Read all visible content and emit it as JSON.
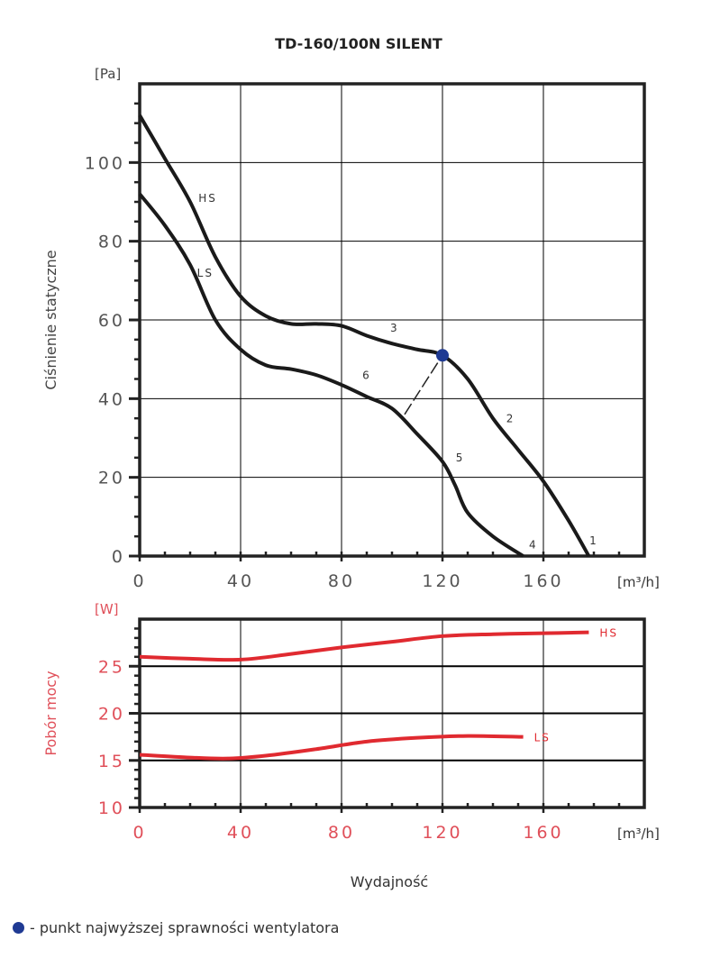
{
  "chart_data": [
    {
      "type": "line",
      "title": "TD-160/100N SILENT",
      "xlabel": "",
      "ylabel": "Ciśnienie statyczne",
      "y_unit": "[Pa]",
      "x_unit": "[m³/h]",
      "xlim": [
        0,
        200
      ],
      "ylim": [
        0,
        120
      ],
      "xticks": [
        "0",
        "40",
        "80",
        "120",
        "160"
      ],
      "yticks": [
        "0",
        "20",
        "40",
        "60",
        "80",
        "100"
      ],
      "grid": true,
      "series": [
        {
          "name": "HS",
          "x": [
            0,
            10,
            20,
            30,
            40,
            50,
            60,
            70,
            80,
            90,
            100,
            110,
            120,
            130,
            140,
            150,
            160,
            170,
            178
          ],
          "y": [
            112,
            101,
            90,
            76,
            66,
            61,
            59,
            59,
            58.5,
            56,
            54,
            52.5,
            51,
            45,
            35,
            27,
            19,
            9,
            0
          ]
        },
        {
          "name": "LS",
          "x": [
            0,
            10,
            20,
            30,
            40,
            50,
            60,
            70,
            80,
            90,
            100,
            110,
            120,
            125,
            130,
            140,
            152
          ],
          "y": [
            92,
            84,
            74,
            60,
            52.5,
            48.5,
            47.5,
            46,
            43.5,
            40.5,
            37.5,
            31,
            24,
            18,
            11,
            5,
            0
          ]
        }
      ],
      "dashed_line": {
        "x": [
          105,
          120
        ],
        "y": [
          36,
          51
        ]
      },
      "max_efficiency_point": {
        "x": 120,
        "y": 51,
        "color": "#1f3a93"
      },
      "annotations": [
        {
          "text": "HS",
          "x": 27,
          "y": 90
        },
        {
          "text": "LS",
          "x": 26,
          "y": 71
        },
        {
          "text": "3",
          "x": 101,
          "y": 57
        },
        {
          "text": "6",
          "x": 90,
          "y": 45
        },
        {
          "text": "2",
          "x": 147,
          "y": 34
        },
        {
          "text": "5",
          "x": 127,
          "y": 24
        },
        {
          "text": "4",
          "x": 156,
          "y": 2
        },
        {
          "text": "1",
          "x": 180,
          "y": 3
        }
      ]
    },
    {
      "type": "line",
      "ylabel": "Pobór mocy",
      "y_unit": "[W]",
      "x_unit": "[m³/h]",
      "xlabel": "Wydajność",
      "xlim": [
        0,
        200
      ],
      "ylim": [
        10,
        30
      ],
      "xticks": [
        "0",
        "40",
        "80",
        "120",
        "160"
      ],
      "yticks": [
        "10",
        "15",
        "20",
        "25"
      ],
      "grid": true,
      "color": "#e02a30",
      "series": [
        {
          "name": "HS",
          "x": [
            0,
            20,
            40,
            60,
            80,
            100,
            120,
            140,
            160,
            178
          ],
          "y": [
            26,
            25.8,
            25.7,
            26.3,
            27,
            27.6,
            28.2,
            28.4,
            28.5,
            28.6
          ]
        },
        {
          "name": "LS",
          "x": [
            0,
            20,
            35,
            50,
            70,
            90,
            110,
            130,
            152
          ],
          "y": [
            15.6,
            15.3,
            15.2,
            15.5,
            16.2,
            17,
            17.4,
            17.6,
            17.5
          ]
        }
      ]
    }
  ],
  "legend": {
    "text": "- punkt najwyższej sprawności wentylatora",
    "color": "#1f3a93"
  }
}
